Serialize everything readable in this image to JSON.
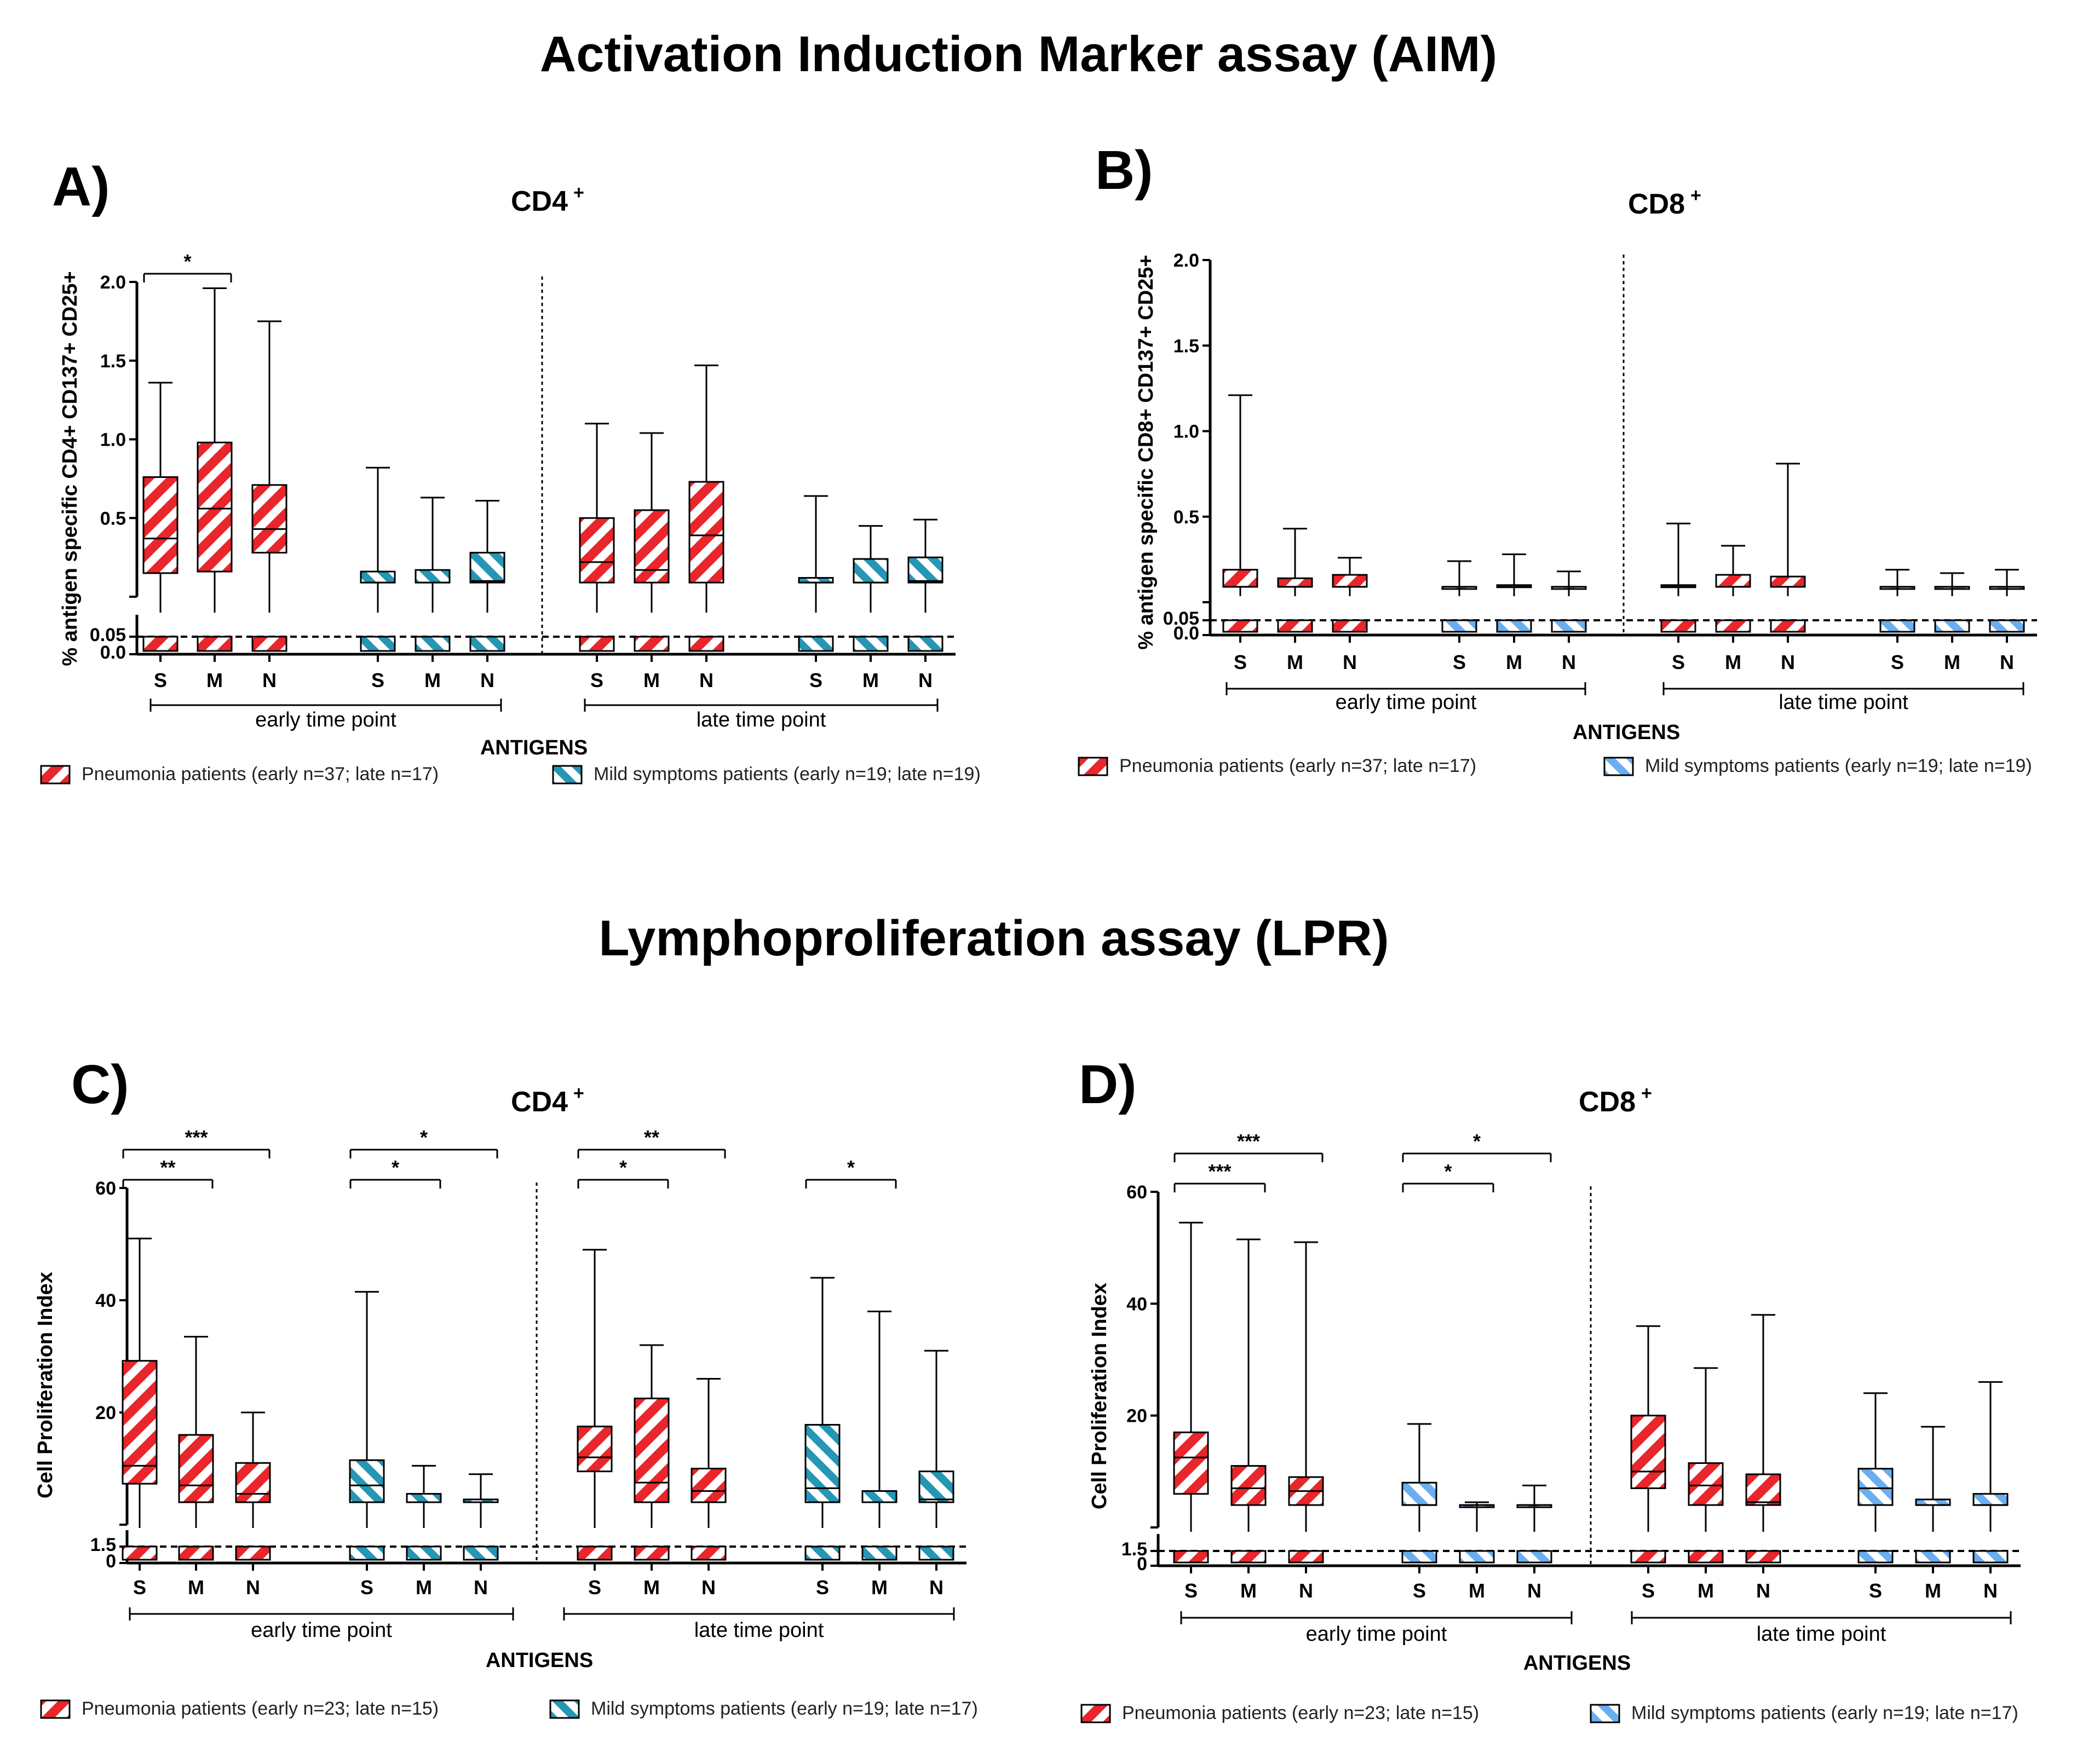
{
  "titles": {
    "aim": "Activation Induction Marker assay (AIM)",
    "lpr": "Lymphoproliferation assay (LPR)"
  },
  "colors": {
    "pneumonia": "#e8262b",
    "mild_teal": "#2596b4",
    "mild_light_blue": "#6aaef0",
    "ink": "#000000"
  },
  "chart_data": [
    {
      "id": "A",
      "letter": "A)",
      "type": "boxplot",
      "title": "CD4",
      "title_sup": "+",
      "ylabel": "% antigen specific CD4+ CD137+ CD25+",
      "xlabel": "ANTIGENS",
      "yticks": [
        "2.0",
        "1.5",
        "1.0",
        "0.5",
        "0.05",
        "0.0"
      ],
      "ylim": [
        0,
        2.0
      ],
      "threshold": 0.05,
      "mild_color": "mild_teal",
      "groups": [
        "early time point",
        "late time point"
      ],
      "categories": [
        "S",
        "M",
        "N",
        "S",
        "M",
        "N",
        "S",
        "M",
        "N",
        "S",
        "M",
        "N"
      ],
      "legend": [
        "Pneumonia patients (early n=37; late n=17)",
        "Mild symptoms patients (early n=19; late n=19)"
      ],
      "significance": [
        {
          "label": "*",
          "from": 0,
          "to": 1,
          "level": 0
        }
      ],
      "boxes": [
        {
          "series": "pneumonia",
          "cat": "S",
          "q1": 0.15,
          "median": 0.37,
          "q3": 0.76,
          "max": 1.36
        },
        {
          "series": "pneumonia",
          "cat": "M",
          "q1": 0.16,
          "median": 0.56,
          "q3": 0.98,
          "max": 1.96
        },
        {
          "series": "pneumonia",
          "cat": "N",
          "q1": 0.28,
          "median": 0.43,
          "q3": 0.71,
          "max": 1.75
        },
        {
          "series": "mild",
          "cat": "S",
          "q1": 0.09,
          "median": 0.09,
          "q3": 0.16,
          "max": 0.82
        },
        {
          "series": "mild",
          "cat": "M",
          "q1": 0.09,
          "median": 0.09,
          "q3": 0.17,
          "max": 0.63
        },
        {
          "series": "mild",
          "cat": "N",
          "q1": 0.09,
          "median": 0.1,
          "q3": 0.28,
          "max": 0.61
        },
        {
          "series": "pneumonia",
          "cat": "S",
          "q1": 0.09,
          "median": 0.22,
          "q3": 0.5,
          "max": 1.1
        },
        {
          "series": "pneumonia",
          "cat": "M",
          "q1": 0.09,
          "median": 0.17,
          "q3": 0.55,
          "max": 1.04
        },
        {
          "series": "pneumonia",
          "cat": "N",
          "q1": 0.09,
          "median": 0.39,
          "q3": 0.73,
          "max": 1.47
        },
        {
          "series": "mild",
          "cat": "S",
          "q1": 0.09,
          "median": 0.09,
          "q3": 0.12,
          "max": 0.64
        },
        {
          "series": "mild",
          "cat": "M",
          "q1": 0.09,
          "median": 0.09,
          "q3": 0.24,
          "max": 0.45
        },
        {
          "series": "mild",
          "cat": "N",
          "q1": 0.09,
          "median": 0.1,
          "q3": 0.25,
          "max": 0.49
        }
      ]
    },
    {
      "id": "B",
      "letter": "B)",
      "type": "boxplot",
      "title": "CD8",
      "title_sup": "+",
      "ylabel": "% antigen specific CD8+ CD137+ CD25+",
      "xlabel": "ANTIGENS",
      "yticks": [
        "2.0",
        "1.5",
        "1.0",
        "0.5",
        "0.05",
        "0.0"
      ],
      "ylim": [
        0,
        2.0
      ],
      "threshold": 0.05,
      "mild_color": "mild_light_blue",
      "groups": [
        "early time point",
        "late time point"
      ],
      "categories": [
        "S",
        "M",
        "N",
        "S",
        "M",
        "N",
        "S",
        "M",
        "N",
        "S",
        "M",
        "N"
      ],
      "legend": [
        "Pneumonia patients (early n=37; late n=17)",
        "Mild symptoms patients (early n=19; late n=19)"
      ],
      "significance": [],
      "boxes": [
        {
          "series": "pneumonia",
          "cat": "S",
          "q1": 0.09,
          "median": 0.09,
          "q3": 0.19,
          "max": 1.21
        },
        {
          "series": "pneumonia",
          "cat": "M",
          "q1": 0.09,
          "median": 0.09,
          "q3": 0.14,
          "max": 0.43
        },
        {
          "series": "pneumonia",
          "cat": "N",
          "q1": 0.09,
          "median": 0.09,
          "q3": 0.16,
          "max": 0.26
        },
        {
          "series": "mild",
          "cat": "S",
          "q1": 0.09,
          "median": 0.09,
          "q3": 0.09,
          "max": 0.24
        },
        {
          "series": "mild",
          "cat": "M",
          "q1": 0.09,
          "median": 0.09,
          "q3": 0.1,
          "max": 0.28
        },
        {
          "series": "mild",
          "cat": "N",
          "q1": 0.09,
          "median": 0.09,
          "q3": 0.09,
          "max": 0.18
        },
        {
          "series": "pneumonia",
          "cat": "S",
          "q1": 0.09,
          "median": 0.09,
          "q3": 0.1,
          "max": 0.46
        },
        {
          "series": "pneumonia",
          "cat": "M",
          "q1": 0.09,
          "median": 0.09,
          "q3": 0.16,
          "max": 0.33
        },
        {
          "series": "pneumonia",
          "cat": "N",
          "q1": 0.09,
          "median": 0.09,
          "q3": 0.15,
          "max": 0.81
        },
        {
          "series": "mild",
          "cat": "S",
          "q1": 0.09,
          "median": 0.09,
          "q3": 0.09,
          "max": 0.19
        },
        {
          "series": "mild",
          "cat": "M",
          "q1": 0.09,
          "median": 0.09,
          "q3": 0.09,
          "max": 0.17
        },
        {
          "series": "mild",
          "cat": "N",
          "q1": 0.09,
          "median": 0.09,
          "q3": 0.09,
          "max": 0.19
        }
      ]
    },
    {
      "id": "C",
      "letter": "C)",
      "type": "boxplot",
      "title": "CD4",
      "title_sup": "+",
      "ylabel": "Cell Proliferation Index",
      "xlabel": "ANTIGENS",
      "yticks": [
        "60",
        "40",
        "20",
        "1.5",
        "0"
      ],
      "ylim": [
        0,
        60
      ],
      "threshold": 1.5,
      "mild_color": "mild_teal",
      "groups": [
        "early time point",
        "late time point"
      ],
      "categories": [
        "S",
        "M",
        "N",
        "S",
        "M",
        "N",
        "S",
        "M",
        "N",
        "S",
        "M",
        "N"
      ],
      "legend": [
        "Pneumonia patients (early n=23; late n=15)",
        "Mild symptoms patients (early n=19; late n=17)"
      ],
      "significance": [
        {
          "label": "***",
          "from": 0,
          "to": 2,
          "level": 1
        },
        {
          "label": "**",
          "from": 0,
          "to": 1,
          "level": 0
        },
        {
          "label": "*",
          "from": 3,
          "to": 5,
          "level": 1
        },
        {
          "label": "*",
          "from": 3,
          "to": 4,
          "level": 0
        },
        {
          "label": "**",
          "from": 6,
          "to": 8,
          "level": 1
        },
        {
          "label": "*",
          "from": 6,
          "to": 7,
          "level": 0
        },
        {
          "label": "*",
          "from": 9,
          "to": 10,
          "level": 0
        }
      ],
      "boxes": [
        {
          "series": "pneumonia",
          "cat": "S",
          "q1": 7.3,
          "median": 10.5,
          "q3": 29.2,
          "max": 51
        },
        {
          "series": "pneumonia",
          "cat": "M",
          "q1": 4,
          "median": 7,
          "q3": 16,
          "max": 33.5
        },
        {
          "series": "pneumonia",
          "cat": "N",
          "q1": 4,
          "median": 5.5,
          "q3": 11,
          "max": 20
        },
        {
          "series": "mild",
          "cat": "S",
          "q1": 4,
          "median": 7,
          "q3": 11.5,
          "max": 41.5
        },
        {
          "series": "mild",
          "cat": "M",
          "q1": 4,
          "median": 4,
          "q3": 5.5,
          "max": 10.5
        },
        {
          "series": "mild",
          "cat": "N",
          "q1": 4,
          "median": 4,
          "q3": 4.5,
          "max": 9
        },
        {
          "series": "pneumonia",
          "cat": "S",
          "q1": 9.5,
          "median": 12,
          "q3": 17.5,
          "max": 49
        },
        {
          "series": "pneumonia",
          "cat": "M",
          "q1": 4,
          "median": 7.5,
          "q3": 22.5,
          "max": 32
        },
        {
          "series": "pneumonia",
          "cat": "N",
          "q1": 4,
          "median": 6,
          "q3": 10,
          "max": 26
        },
        {
          "series": "mild",
          "cat": "S",
          "q1": 4,
          "median": 6.5,
          "q3": 17.8,
          "max": 44
        },
        {
          "series": "mild",
          "cat": "M",
          "q1": 4,
          "median": 4,
          "q3": 6,
          "max": 38
        },
        {
          "series": "mild",
          "cat": "N",
          "q1": 4,
          "median": 4.5,
          "q3": 9.5,
          "max": 31
        }
      ]
    },
    {
      "id": "D",
      "letter": "D)",
      "type": "boxplot",
      "title": "CD8",
      "title_sup": "+",
      "ylabel": "Cell Proliferation Index",
      "xlabel": "ANTIGENS",
      "yticks": [
        "60",
        "40",
        "20",
        "1.5",
        "0"
      ],
      "ylim": [
        0,
        60
      ],
      "threshold": 1.5,
      "mild_color": "mild_light_blue",
      "groups": [
        "early time point",
        "late time point"
      ],
      "categories": [
        "S",
        "M",
        "N",
        "S",
        "M",
        "N",
        "S",
        "M",
        "N",
        "S",
        "M",
        "N"
      ],
      "legend": [
        "Pneumonia patients (early n=23; late n=15)",
        "Mild symptoms patients (early n=19; late n=17)"
      ],
      "significance": [
        {
          "label": "***",
          "from": 0,
          "to": 2,
          "level": 1
        },
        {
          "label": "***",
          "from": 0,
          "to": 1,
          "level": 0
        },
        {
          "label": "*",
          "from": 3,
          "to": 5,
          "level": 1
        },
        {
          "label": "*",
          "from": 3,
          "to": 4,
          "level": 0
        }
      ],
      "boxes": [
        {
          "series": "pneumonia",
          "cat": "S",
          "q1": 6,
          "median": 12.5,
          "q3": 17,
          "max": 54.5
        },
        {
          "series": "pneumonia",
          "cat": "M",
          "q1": 4,
          "median": 7,
          "q3": 11,
          "max": 51.5
        },
        {
          "series": "pneumonia",
          "cat": "N",
          "q1": 4,
          "median": 6.5,
          "q3": 9,
          "max": 51
        },
        {
          "series": "mild",
          "cat": "S",
          "q1": 4,
          "median": 4,
          "q3": 8,
          "max": 18.5
        },
        {
          "series": "mild",
          "cat": "M",
          "q1": 4,
          "median": 4,
          "q3": 4,
          "max": 4.5
        },
        {
          "series": "mild",
          "cat": "N",
          "q1": 4,
          "median": 4,
          "q3": 4,
          "max": 7.5
        },
        {
          "series": "pneumonia",
          "cat": "S",
          "q1": 7,
          "median": 10,
          "q3": 20,
          "max": 36
        },
        {
          "series": "pneumonia",
          "cat": "M",
          "q1": 4,
          "median": 7.5,
          "q3": 11.5,
          "max": 28.5
        },
        {
          "series": "pneumonia",
          "cat": "N",
          "q1": 4,
          "median": 4.5,
          "q3": 9.5,
          "max": 38
        },
        {
          "series": "mild",
          "cat": "S",
          "q1": 4,
          "median": 7,
          "q3": 10.5,
          "max": 24
        },
        {
          "series": "mild",
          "cat": "M",
          "q1": 4,
          "median": 4,
          "q3": 5,
          "max": 18
        },
        {
          "series": "mild",
          "cat": "N",
          "q1": 4,
          "median": 4,
          "q3": 6,
          "max": 26
        }
      ]
    }
  ]
}
